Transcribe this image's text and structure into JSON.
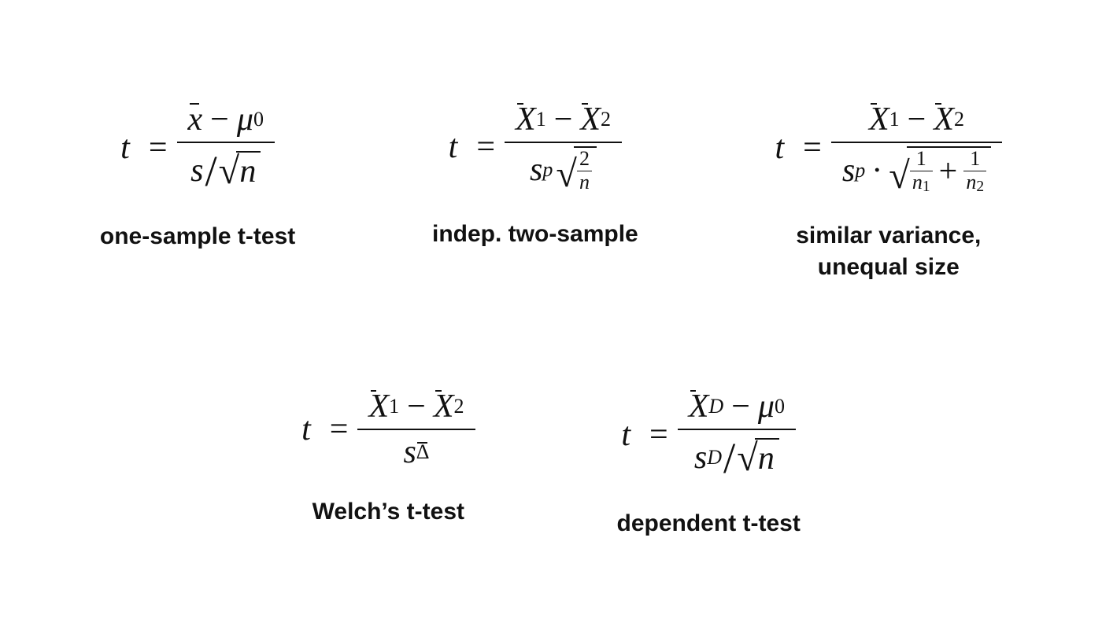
{
  "background_color": "#ffffff",
  "text_color": "#111111",
  "formula_fontsize": 42,
  "caption_fontsize": 30,
  "caption_font_family": "Helvetica",
  "formula_font_family": "Georgia",
  "formulas": [
    {
      "id": "one-sample",
      "caption": "one-sample t-test",
      "lhs": "t",
      "numerator_parts": [
        "x̄",
        "−",
        "μ",
        "0"
      ],
      "denominator_parts": [
        "s",
        "/",
        "√",
        "n"
      ]
    },
    {
      "id": "indep-two-sample",
      "caption": "indep. two-sample",
      "lhs": "t",
      "numerator_parts": [
        "X̄",
        "1",
        "−",
        "X̄",
        "2"
      ],
      "denominator_parts": [
        "s",
        "p",
        "√",
        "2",
        "/",
        "n"
      ]
    },
    {
      "id": "similar-variance",
      "caption": "similar variance,\nunequal size",
      "lhs": "t",
      "numerator_parts": [
        "X̄",
        "1",
        "−",
        "X̄",
        "2"
      ],
      "denominator_parts": [
        "s",
        "p",
        "·",
        "√",
        "1",
        "/",
        "n",
        "1",
        "+",
        "1",
        "/",
        "n",
        "2"
      ]
    },
    {
      "id": "welch",
      "caption": "Welch’s t-test",
      "lhs": "t",
      "numerator_parts": [
        "X̄",
        "1",
        "−",
        "X̄",
        "2"
      ],
      "denominator_parts": [
        "s",
        "Δ̄"
      ]
    },
    {
      "id": "dependent",
      "caption": "dependent t-test",
      "lhs": "t",
      "numerator_parts": [
        "X̄",
        "D",
        "−",
        "μ",
        "0"
      ],
      "denominator_parts": [
        "s",
        "D",
        "/",
        "√",
        "n"
      ]
    }
  ]
}
